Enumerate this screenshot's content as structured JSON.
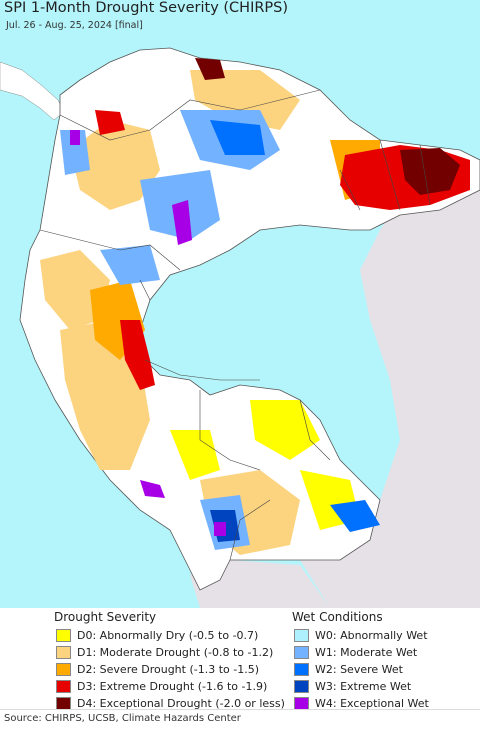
{
  "title": "SPI 1-Month Drought Severity (CHIRPS)",
  "subtitle": "Jul. 26 - Aug. 25, 2024 [final]",
  "colors": {
    "ocean": "#b3f5fa",
    "land_outside": "#e6e1e7",
    "land_normal": "#ffffff",
    "d0": "#ffff00",
    "d1": "#fcd37f",
    "d2": "#ffaa00",
    "d3": "#e60000",
    "d4": "#730000",
    "w0": "#aff0ff",
    "w1": "#73b2ff",
    "w2": "#0070ff",
    "w3": "#0044c0",
    "w4": "#a800e6"
  },
  "legend": {
    "drought_title": "Drought Severity",
    "wet_title": "Wet Conditions",
    "drought": [
      {
        "code": "d0",
        "label": "D0: Abnormally Dry (-0.5 to -0.7)"
      },
      {
        "code": "d1",
        "label": "D1: Moderate Drought (-0.8 to -1.2)"
      },
      {
        "code": "d2",
        "label": "D2: Severe Drought (-1.3 to -1.5)"
      },
      {
        "code": "d3",
        "label": "D3: Extreme Drought (-1.6 to -1.9)"
      },
      {
        "code": "d4",
        "label": "D4: Exceptional Drought (-2.0 or less)"
      }
    ],
    "wet": [
      {
        "code": "w0",
        "label": "W0: Abnormally Wet"
      },
      {
        "code": "w1",
        "label": "W1: Moderate Wet"
      },
      {
        "code": "w2",
        "label": "W2: Severe Wet"
      },
      {
        "code": "w3",
        "label": "W3: Extreme Wet"
      },
      {
        "code": "w4",
        "label": "W4: Exceptional Wet"
      }
    ]
  },
  "source": "Source: CHIRPS, UCSB, Climate Hazards Center"
}
